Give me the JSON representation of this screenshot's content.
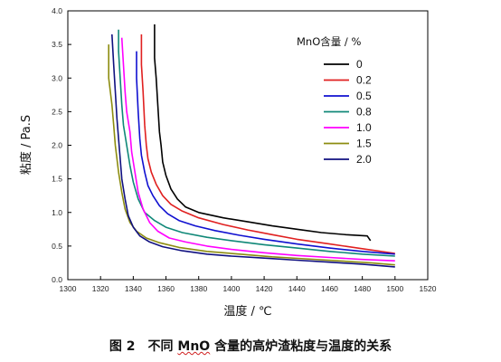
{
  "caption": {
    "figure_number": "图 2",
    "text_prefix": "不同 ",
    "text_underlined": "MnO",
    "text_suffix": " 含量的高炉渣粘度与温度的关系"
  },
  "chart_data": {
    "type": "line",
    "title": "",
    "xlabel": "温度 / ℃",
    "ylabel": "粘度 / Pa.S",
    "xlim": [
      1300,
      1520
    ],
    "ylim": [
      0.0,
      4.0
    ],
    "x_ticks": [
      "1300",
      "1320",
      "1340",
      "1360",
      "1380",
      "1400",
      "1420",
      "1440",
      "1460",
      "1480",
      "1500",
      "1520"
    ],
    "y_ticks": [
      "0.0",
      "0.5",
      "1.0",
      "1.5",
      "2.0",
      "2.5",
      "3.0",
      "3.5",
      "4.0"
    ],
    "grid": false,
    "legend": {
      "title": "MnO含量 / %",
      "placement": "top-right"
    },
    "series": [
      {
        "name": "0",
        "color": "#000000",
        "points": [
          [
            1353,
            3.8
          ],
          [
            1353,
            3.3
          ],
          [
            1354,
            3.0
          ],
          [
            1355,
            2.6
          ],
          [
            1356,
            2.2
          ],
          [
            1357,
            2.0
          ],
          [
            1358,
            1.75
          ],
          [
            1360,
            1.55
          ],
          [
            1363,
            1.35
          ],
          [
            1367,
            1.2
          ],
          [
            1372,
            1.08
          ],
          [
            1380,
            1.0
          ],
          [
            1395,
            0.92
          ],
          [
            1410,
            0.86
          ],
          [
            1425,
            0.8
          ],
          [
            1440,
            0.75
          ],
          [
            1455,
            0.7
          ],
          [
            1470,
            0.67
          ],
          [
            1483,
            0.65
          ],
          [
            1485,
            0.58
          ]
        ]
      },
      {
        "name": "0.2",
        "color": "#e02020",
        "points": [
          [
            1345,
            3.65
          ],
          [
            1345,
            3.2
          ],
          [
            1346,
            2.8
          ],
          [
            1347,
            2.3
          ],
          [
            1348,
            2.0
          ],
          [
            1349,
            1.8
          ],
          [
            1351,
            1.6
          ],
          [
            1354,
            1.42
          ],
          [
            1358,
            1.25
          ],
          [
            1363,
            1.12
          ],
          [
            1370,
            1.02
          ],
          [
            1380,
            0.92
          ],
          [
            1395,
            0.82
          ],
          [
            1410,
            0.74
          ],
          [
            1425,
            0.67
          ],
          [
            1440,
            0.6
          ],
          [
            1460,
            0.53
          ],
          [
            1480,
            0.46
          ],
          [
            1500,
            0.39
          ]
        ]
      },
      {
        "name": "0.5",
        "color": "#1010d0",
        "points": [
          [
            1342,
            3.4
          ],
          [
            1342,
            3.0
          ],
          [
            1343,
            2.5
          ],
          [
            1344,
            2.1
          ],
          [
            1345,
            1.85
          ],
          [
            1347,
            1.6
          ],
          [
            1349,
            1.4
          ],
          [
            1352,
            1.25
          ],
          [
            1356,
            1.1
          ],
          [
            1361,
            0.98
          ],
          [
            1368,
            0.88
          ],
          [
            1378,
            0.8
          ],
          [
            1390,
            0.73
          ],
          [
            1405,
            0.66
          ],
          [
            1420,
            0.6
          ],
          [
            1440,
            0.53
          ],
          [
            1460,
            0.47
          ],
          [
            1480,
            0.42
          ],
          [
            1500,
            0.38
          ]
        ]
      },
      {
        "name": "0.8",
        "color": "#108878",
        "points": [
          [
            1331,
            3.72
          ],
          [
            1331,
            3.4
          ],
          [
            1332,
            3.0
          ],
          [
            1333,
            2.6
          ],
          [
            1334,
            2.3
          ],
          [
            1336,
            2.0
          ],
          [
            1338,
            1.7
          ],
          [
            1340,
            1.45
          ],
          [
            1343,
            1.2
          ],
          [
            1347,
            1.0
          ],
          [
            1353,
            0.88
          ],
          [
            1360,
            0.78
          ],
          [
            1370,
            0.7
          ],
          [
            1385,
            0.63
          ],
          [
            1400,
            0.58
          ],
          [
            1420,
            0.52
          ],
          [
            1440,
            0.47
          ],
          [
            1460,
            0.42
          ],
          [
            1480,
            0.38
          ],
          [
            1500,
            0.35
          ]
        ]
      },
      {
        "name": "1.0",
        "color": "#ff00ff",
        "points": [
          [
            1333,
            3.6
          ],
          [
            1334,
            3.2
          ],
          [
            1335,
            2.8
          ],
          [
            1336,
            2.5
          ],
          [
            1338,
            2.2
          ],
          [
            1339,
            1.9
          ],
          [
            1341,
            1.6
          ],
          [
            1343,
            1.3
          ],
          [
            1346,
            1.05
          ],
          [
            1350,
            0.85
          ],
          [
            1355,
            0.72
          ],
          [
            1362,
            0.62
          ],
          [
            1372,
            0.56
          ],
          [
            1385,
            0.5
          ],
          [
            1400,
            0.45
          ],
          [
            1420,
            0.4
          ],
          [
            1440,
            0.36
          ],
          [
            1460,
            0.33
          ],
          [
            1480,
            0.3
          ],
          [
            1500,
            0.28
          ]
        ]
      },
      {
        "name": "1.5",
        "color": "#8c8c10",
        "points": [
          [
            1325,
            3.5
          ],
          [
            1325,
            3.0
          ],
          [
            1326,
            2.8
          ],
          [
            1327,
            2.6
          ],
          [
            1328,
            2.3
          ],
          [
            1329,
            2.0
          ],
          [
            1330,
            1.8
          ],
          [
            1331,
            1.6
          ],
          [
            1333,
            1.3
          ],
          [
            1335,
            1.05
          ],
          [
            1338,
            0.85
          ],
          [
            1342,
            0.72
          ],
          [
            1348,
            0.62
          ],
          [
            1356,
            0.55
          ],
          [
            1368,
            0.48
          ],
          [
            1385,
            0.42
          ],
          [
            1405,
            0.38
          ],
          [
            1425,
            0.34
          ],
          [
            1445,
            0.31
          ],
          [
            1465,
            0.28
          ],
          [
            1485,
            0.25
          ],
          [
            1500,
            0.22
          ]
        ]
      },
      {
        "name": "2.0",
        "color": "#101080",
        "points": [
          [
            1327,
            3.65
          ],
          [
            1328,
            3.2
          ],
          [
            1329,
            2.8
          ],
          [
            1330,
            2.4
          ],
          [
            1331,
            2.1
          ],
          [
            1332,
            1.8
          ],
          [
            1333,
            1.5
          ],
          [
            1335,
            1.2
          ],
          [
            1337,
            0.95
          ],
          [
            1340,
            0.78
          ],
          [
            1344,
            0.65
          ],
          [
            1350,
            0.56
          ],
          [
            1358,
            0.49
          ],
          [
            1370,
            0.43
          ],
          [
            1385,
            0.38
          ],
          [
            1400,
            0.35
          ],
          [
            1420,
            0.32
          ],
          [
            1440,
            0.29
          ],
          [
            1460,
            0.26
          ],
          [
            1480,
            0.23
          ],
          [
            1500,
            0.19
          ]
        ]
      }
    ]
  }
}
